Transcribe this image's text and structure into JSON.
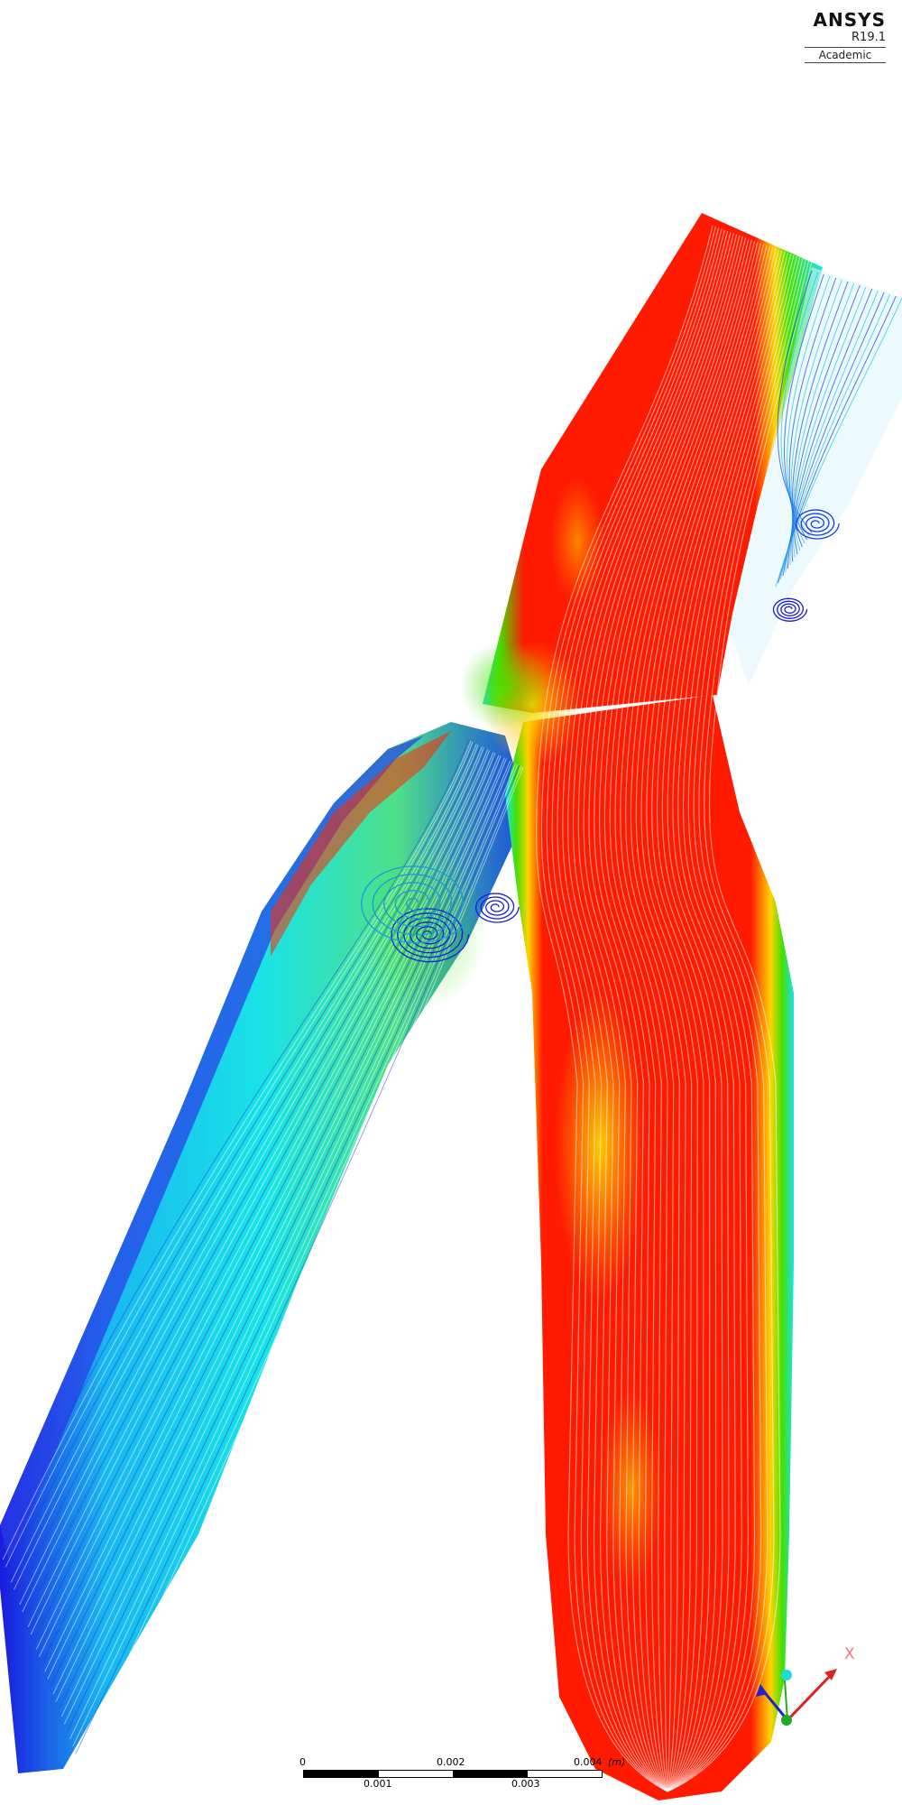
{
  "logo": {
    "name": "ANSYS",
    "version": "R19.1",
    "edition": "Academic"
  },
  "scale_bar": {
    "top_labels": [
      "0",
      "0.002",
      "0.004"
    ],
    "bottom_labels": [
      "0.001",
      "0.003"
    ],
    "unit": "(m)"
  },
  "triad": {
    "x_label": "X"
  },
  "colors": {
    "fast": "#ff1a00",
    "high": "#ffd400",
    "mid": "#44e000",
    "low": "#19e3e6",
    "slow": "#1a1ae0",
    "triad_x": "#dd2222",
    "triad_y": "#22aa22",
    "triad_z": "#2222cc"
  },
  "icons": [
    "ansys-logo",
    "scale-bar",
    "axis-triad-icon"
  ]
}
